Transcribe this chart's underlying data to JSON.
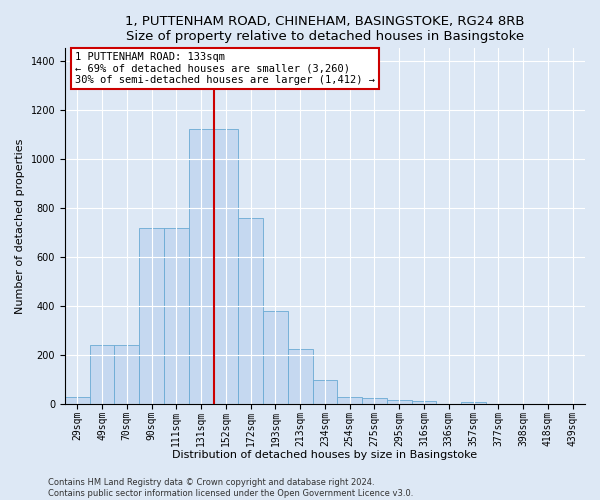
{
  "title_line1": "1, PUTTENHAM ROAD, CHINEHAM, BASINGSTOKE, RG24 8RB",
  "title_line2": "Size of property relative to detached houses in Basingstoke",
  "xlabel": "Distribution of detached houses by size in Basingstoke",
  "ylabel": "Number of detached properties",
  "categories": [
    "29sqm",
    "49sqm",
    "70sqm",
    "90sqm",
    "111sqm",
    "131sqm",
    "152sqm",
    "172sqm",
    "193sqm",
    "213sqm",
    "234sqm",
    "254sqm",
    "275sqm",
    "295sqm",
    "316sqm",
    "336sqm",
    "357sqm",
    "377sqm",
    "398sqm",
    "418sqm",
    "439sqm"
  ],
  "values": [
    30,
    240,
    240,
    720,
    720,
    1120,
    1120,
    760,
    380,
    225,
    100,
    30,
    25,
    18,
    15,
    0,
    10,
    0,
    0,
    0,
    0
  ],
  "bar_color": "#c5d8f0",
  "bar_edge_color": "#6aaad4",
  "vline_x": 5.5,
  "vline_color": "#cc0000",
  "annotation_text": "1 PUTTENHAM ROAD: 133sqm\n← 69% of detached houses are smaller (3,260)\n30% of semi-detached houses are larger (1,412) →",
  "annotation_box_color": "#ffffff",
  "annotation_box_edge_color": "#cc0000",
  "ylim": [
    0,
    1450
  ],
  "yticks": [
    0,
    200,
    400,
    600,
    800,
    1000,
    1200,
    1400
  ],
  "footer_line1": "Contains HM Land Registry data © Crown copyright and database right 2024.",
  "footer_line2": "Contains public sector information licensed under the Open Government Licence v3.0.",
  "bg_color": "#dde8f5",
  "plot_bg_color": "#dde8f5",
  "title_fontsize": 9.5,
  "axis_label_fontsize": 8,
  "tick_fontsize": 7,
  "footer_fontsize": 6,
  "annotation_fontsize": 7.5
}
